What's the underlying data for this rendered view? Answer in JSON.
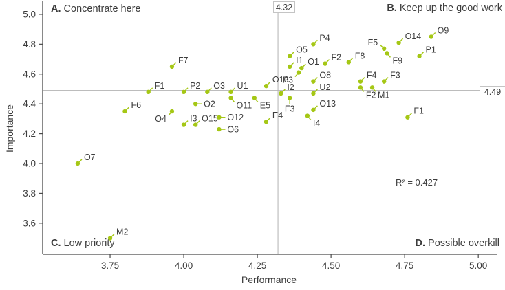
{
  "figure": {
    "quadrants": {
      "a": {
        "prefix": "A.",
        "label": "Concentrate here"
      },
      "b": {
        "prefix": "B.",
        "label": "Keep up the good work"
      },
      "c": {
        "prefix": "C.",
        "label": "Low priority"
      },
      "d": {
        "prefix": "D.",
        "label": "Possible overkill"
      }
    },
    "annotations": {
      "r_squared_text": "R² = 0.427",
      "crosshair_x_label": "4.32",
      "crosshair_y_label": "4.49"
    },
    "colors": {
      "point": "#a5c715",
      "text": "#3d3d3d",
      "axis": "#4a4a4a",
      "ref_line": "#b3b3b3",
      "box_border": "#c4c4c4",
      "background": "#ffffff"
    }
  },
  "chart_data": {
    "type": "scatter",
    "title": "",
    "xlabel": "Performance",
    "ylabel": "Importance",
    "xlim": [
      3.521,
      5.058
    ],
    "ylim": [
      3.392,
      5.078
    ],
    "x_ticks": [
      3.75,
      4.0,
      4.25,
      4.5,
      4.75,
      5.0
    ],
    "y_ticks": [
      3.6,
      3.8,
      4.0,
      4.2,
      4.4,
      4.6,
      4.8,
      5.0
    ],
    "x_tick_labels": [
      "3.75",
      "4.00",
      "4.25",
      "4.50",
      "4.75",
      "5.00"
    ],
    "y_tick_labels": [
      "3.6",
      "3.8",
      "4.0",
      "4.2",
      "4.4",
      "4.6",
      "4.8",
      "5.0"
    ],
    "grid": false,
    "grand_mean": {
      "performance": 4.32,
      "importance": 4.49
    },
    "r_squared": 0.427,
    "points": [
      {
        "label": "F7",
        "performance": 3.96,
        "importance": 4.65,
        "label_dir": "ur"
      },
      {
        "label": "F1",
        "performance": 3.88,
        "importance": 4.48,
        "label_dir": "ur"
      },
      {
        "label": "P2",
        "performance": 4.0,
        "importance": 4.48,
        "label_dir": "ur"
      },
      {
        "label": "O3",
        "performance": 4.08,
        "importance": 4.48,
        "label_dir": "ur"
      },
      {
        "label": "U1",
        "performance": 4.16,
        "importance": 4.48,
        "label_dir": "ur"
      },
      {
        "label": "O11",
        "performance": 4.16,
        "importance": 4.44,
        "label_dir": "dr"
      },
      {
        "label": "F6",
        "performance": 3.8,
        "importance": 4.35,
        "label_dir": "ur"
      },
      {
        "label": "O4",
        "performance": 3.96,
        "importance": 4.35,
        "label_dir": "dl"
      },
      {
        "label": "O2",
        "performance": 4.04,
        "importance": 4.4,
        "label_dir": "r"
      },
      {
        "label": "I3",
        "performance": 4.0,
        "importance": 4.26,
        "label_dir": "ur"
      },
      {
        "label": "O15",
        "performance": 4.04,
        "importance": 4.26,
        "label_dir": "ur"
      },
      {
        "label": "O12",
        "performance": 4.12,
        "importance": 4.31,
        "label_dir": "r"
      },
      {
        "label": "O6",
        "performance": 4.12,
        "importance": 4.23,
        "label_dir": "r"
      },
      {
        "label": "O7",
        "performance": 3.64,
        "importance": 4.0,
        "label_dir": "ur"
      },
      {
        "label": "M2",
        "performance": 3.75,
        "importance": 3.5,
        "label_dir": "ur"
      },
      {
        "label": "O10",
        "performance": 4.28,
        "importance": 4.52,
        "label_dir": "ur"
      },
      {
        "label": "I2",
        "performance": 4.33,
        "importance": 4.47,
        "label_dir": "ur"
      },
      {
        "label": "E5",
        "performance": 4.24,
        "importance": 4.44,
        "label_dir": "dr"
      },
      {
        "label": "F3",
        "performance": 4.36,
        "importance": 4.44,
        "label_dir": "d"
      },
      {
        "label": "E4",
        "performance": 4.28,
        "importance": 4.28,
        "label_dir": "ur"
      },
      {
        "label": "O5",
        "performance": 4.36,
        "importance": 4.72,
        "label_dir": "ur"
      },
      {
        "label": "I1",
        "performance": 4.36,
        "importance": 4.65,
        "label_dir": "ur"
      },
      {
        "label": "P3",
        "performance": 4.39,
        "importance": 4.61,
        "label_dir": "dl"
      },
      {
        "label": "O1",
        "performance": 4.4,
        "importance": 4.64,
        "label_dir": "ur"
      },
      {
        "label": "O8",
        "performance": 4.44,
        "importance": 4.55,
        "label_dir": "ur"
      },
      {
        "label": "U2",
        "performance": 4.44,
        "importance": 4.47,
        "label_dir": "ur"
      },
      {
        "label": "P4",
        "performance": 4.44,
        "importance": 4.8,
        "label_dir": "ur"
      },
      {
        "label": "F2",
        "performance": 4.48,
        "importance": 4.67,
        "label_dir": "ur"
      },
      {
        "label": "O13",
        "performance": 4.44,
        "importance": 4.36,
        "label_dir": "ur"
      },
      {
        "label": "I4",
        "performance": 4.42,
        "importance": 4.32,
        "label_dir": "dr"
      },
      {
        "label": "F8",
        "performance": 4.56,
        "importance": 4.68,
        "label_dir": "ur"
      },
      {
        "label": "F5",
        "performance": 4.68,
        "importance": 4.77,
        "label_dir": "ul"
      },
      {
        "label": "F9",
        "performance": 4.69,
        "importance": 4.74,
        "label_dir": "dr"
      },
      {
        "label": "O14",
        "performance": 4.73,
        "importance": 4.81,
        "label_dir": "ur"
      },
      {
        "label": "O9",
        "performance": 4.84,
        "importance": 4.85,
        "label_dir": "ur"
      },
      {
        "label": "P1",
        "performance": 4.8,
        "importance": 4.72,
        "label_dir": "ur"
      },
      {
        "label": "F4",
        "performance": 4.6,
        "importance": 4.55,
        "label_dir": "ur"
      },
      {
        "label": "F3",
        "performance": 4.68,
        "importance": 4.55,
        "label_dir": "ur"
      },
      {
        "label": "F2",
        "performance": 4.6,
        "importance": 4.51,
        "label_dir": "dr"
      },
      {
        "label": "M1",
        "performance": 4.64,
        "importance": 4.51,
        "label_dir": "dr"
      },
      {
        "label": "F1",
        "performance": 4.76,
        "importance": 4.31,
        "label_dir": "ur"
      }
    ]
  }
}
